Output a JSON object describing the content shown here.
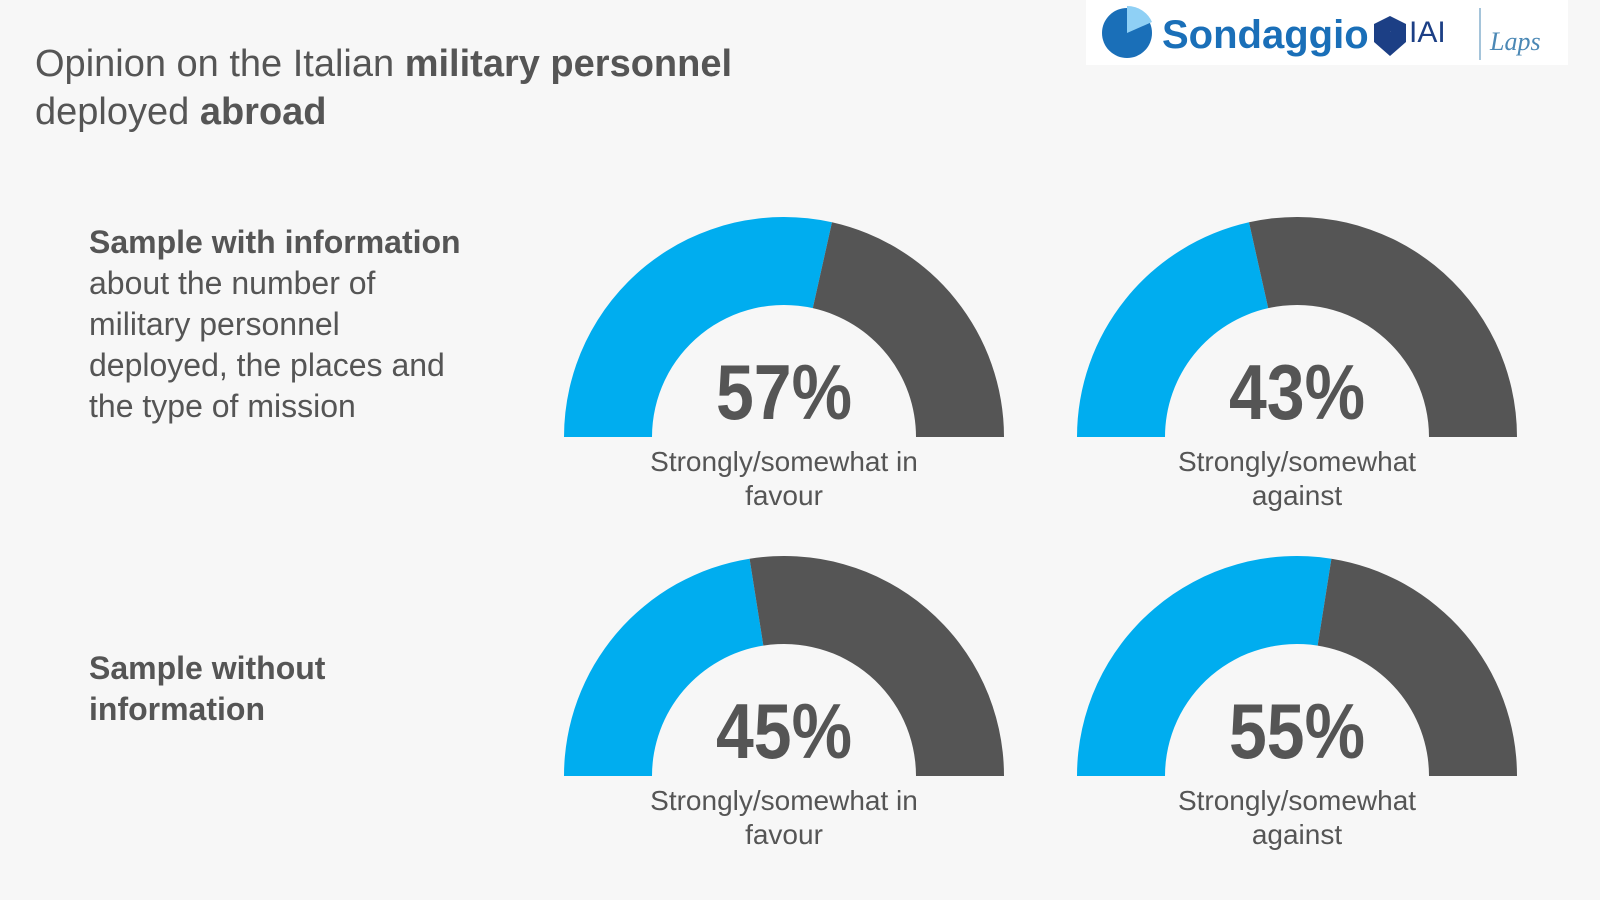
{
  "title_parts": [
    "Opinion on the Italian ",
    "military personnel",
    " deployed ",
    "abroad"
  ],
  "logos": [
    "Sondaggio",
    "IAI",
    "Laps"
  ],
  "rows": [
    {
      "label_parts": [
        "Sample with information",
        " about the number of military personnel deployed, the places and the type of mission"
      ]
    },
    {
      "label_parts": [
        "Sample without information"
      ]
    }
  ],
  "chart_data": [
    {
      "type": "gauge",
      "values": [
        57
      ],
      "value_labels": [
        "57%"
      ],
      "label": "Strongly/somewhat in favour",
      "ylim": [
        0,
        100
      ],
      "color": "#00adef",
      "rest_color": "#555555"
    },
    {
      "type": "gauge",
      "values": [
        43
      ],
      "value_labels": [
        "43%"
      ],
      "label": "Strongly/somewhat against",
      "ylim": [
        0,
        100
      ],
      "color": "#00adef",
      "rest_color": "#555555"
    },
    {
      "type": "gauge",
      "values": [
        45
      ],
      "value_labels": [
        "45%"
      ],
      "label": "Strongly/somewhat in favour",
      "ylim": [
        0,
        100
      ],
      "color": "#00adef",
      "rest_color": "#555555"
    },
    {
      "type": "gauge",
      "values": [
        55
      ],
      "value_labels": [
        "55%"
      ],
      "label": "Strongly/somewhat against",
      "ylim": [
        0,
        100
      ],
      "color": "#00adef",
      "rest_color": "#555555"
    }
  ]
}
